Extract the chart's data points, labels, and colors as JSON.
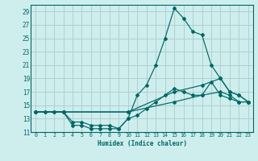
{
  "xlabel": "Humidex (Indice chaleur)",
  "bg_color": "#ceeeed",
  "grid_color": "#aed0ce",
  "line_color": "#006666",
  "xlim": [
    -0.5,
    23.5
  ],
  "ylim": [
    11,
    30
  ],
  "yticks": [
    11,
    13,
    15,
    17,
    19,
    21,
    23,
    25,
    27,
    29
  ],
  "xticks": [
    0,
    1,
    2,
    3,
    4,
    5,
    6,
    7,
    8,
    9,
    10,
    11,
    12,
    13,
    14,
    15,
    16,
    17,
    18,
    19,
    20,
    21,
    22,
    23
  ],
  "line1_x": [
    0,
    1,
    2,
    3,
    4,
    5,
    6,
    7,
    8,
    9,
    10,
    11,
    12,
    13,
    14,
    15,
    16,
    17,
    18,
    19,
    20,
    21,
    22,
    23
  ],
  "line1_y": [
    14,
    14,
    14,
    14,
    12,
    12,
    11.5,
    11.5,
    11.5,
    11.5,
    13,
    13.5,
    14.5,
    15.5,
    16.5,
    17.5,
    17,
    16.5,
    16.5,
    18.5,
    16.5,
    16,
    15.5,
    15.5
  ],
  "line2_x": [
    0,
    1,
    2,
    3,
    4,
    5,
    6,
    7,
    8,
    9,
    10,
    11,
    12,
    13,
    14,
    15,
    16,
    17,
    18,
    19,
    20,
    21,
    22,
    23
  ],
  "line2_y": [
    14,
    14,
    14,
    14,
    12.5,
    12.5,
    12,
    12,
    12,
    11.5,
    13,
    16.5,
    18,
    21,
    25,
    29.5,
    28,
    26,
    25.5,
    21,
    19,
    17,
    16.5,
    15.5
  ],
  "line3_x": [
    0,
    3,
    10,
    15,
    18,
    20,
    21,
    22,
    23
  ],
  "line3_y": [
    14,
    14,
    14,
    15.5,
    16.5,
    17,
    16.5,
    15.5,
    15.5
  ],
  "line4_x": [
    0,
    3,
    10,
    15,
    18,
    20,
    21,
    22,
    23
  ],
  "line4_y": [
    14,
    14,
    14,
    17,
    18,
    19,
    17,
    16.5,
    15.5
  ]
}
